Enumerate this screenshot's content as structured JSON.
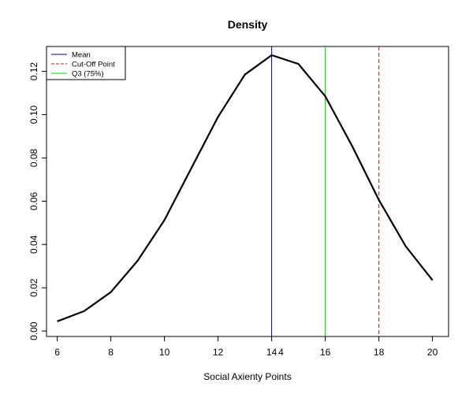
{
  "chart_data": {
    "type": "line",
    "title": "Density",
    "xlabel": "Social Axienty Points",
    "ylabel": "",
    "xlim": [
      5.6,
      20.6
    ],
    "ylim": [
      -0.0025,
      0.1315
    ],
    "x_ticks": [
      "6",
      "8",
      "10",
      "12",
      "14",
      "16",
      "18",
      "20"
    ],
    "x_tick_values": [
      6,
      8,
      10,
      12,
      14,
      16,
      18,
      20
    ],
    "extra_x_tick": {
      "label": "4",
      "value": 14.35
    },
    "y_ticks": [
      "0.00",
      "0.02",
      "0.04",
      "0.06",
      "0.08",
      "0.10",
      "0.12"
    ],
    "y_tick_values": [
      0,
      0.02,
      0.04,
      0.06,
      0.08,
      0.1,
      0.12
    ],
    "series": [
      {
        "x": [
          6,
          7,
          8,
          9,
          10,
          11,
          12,
          13,
          14,
          15,
          16,
          17,
          18,
          19,
          20
        ],
        "y": [
          0.0045,
          0.0092,
          0.018,
          0.0325,
          0.0513,
          0.0752,
          0.099,
          0.1185,
          0.1275,
          0.1234,
          0.1085,
          0.0856,
          0.0606,
          0.0392,
          0.0235
        ],
        "color": "#000000"
      }
    ],
    "vlines": [
      {
        "x": 14.0,
        "color": "#00008B",
        "style": "solid"
      },
      {
        "x": 16.0,
        "color": "#00CC00",
        "style": "solid"
      },
      {
        "x": 18.0,
        "color": "#B22222",
        "style": "dashed"
      }
    ],
    "legend": {
      "position": "top-left",
      "entries": [
        {
          "label": "Mean",
          "color": "#00008B",
          "style": "solid"
        },
        {
          "label": "Cut-Off Point",
          "color": "#B22222",
          "style": "dashed"
        },
        {
          "label": "Q3 (75%)",
          "color": "#00CC00",
          "style": "solid"
        }
      ]
    },
    "grid": false
  }
}
